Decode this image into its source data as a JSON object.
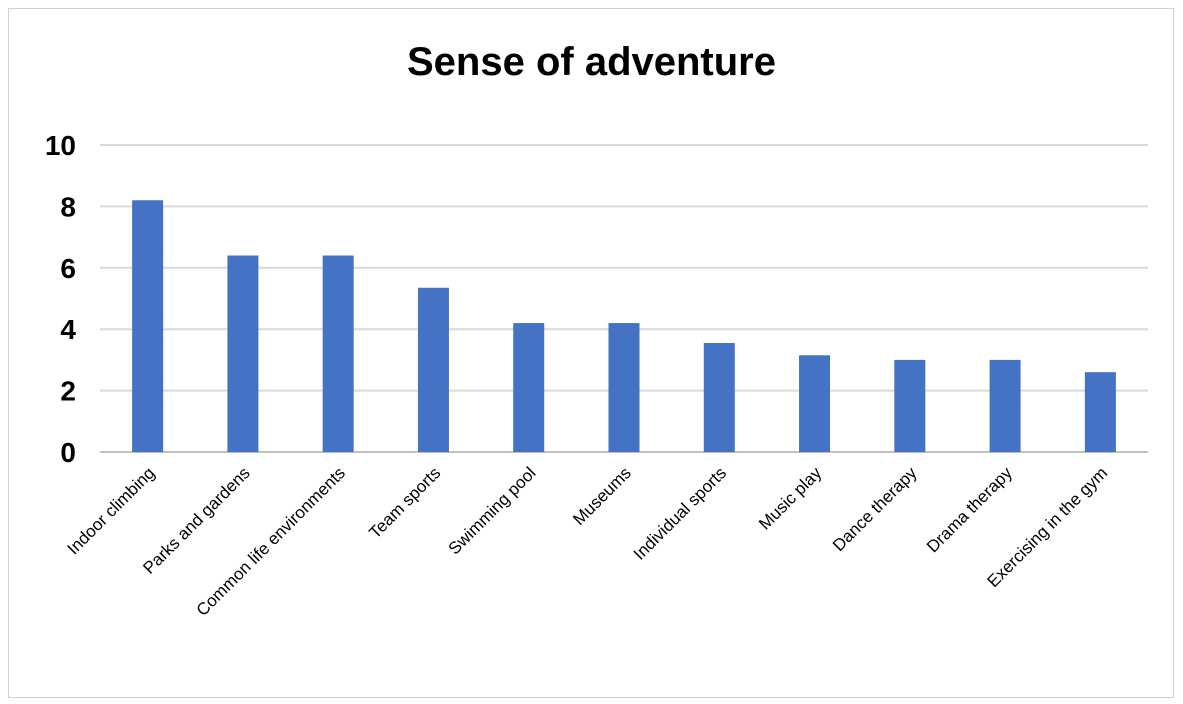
{
  "chart_data": {
    "type": "bar",
    "title": "Sense of adventure",
    "xlabel": "",
    "ylabel": "",
    "categories": [
      "Indoor climbing",
      "Parks and gardens",
      "Common life environments",
      "Team sports",
      "Swimming pool",
      "Museums",
      "Individual sports",
      "Music play",
      "Dance therapy",
      "Drama therapy",
      "Exercising in the gym"
    ],
    "values": [
      8.2,
      6.4,
      6.4,
      5.35,
      4.2,
      4.2,
      3.55,
      3.15,
      3.0,
      3.0,
      2.6
    ],
    "ylim": [
      0,
      10
    ],
    "yticks": [
      "0",
      "2",
      "4",
      "6",
      "8",
      "10"
    ],
    "grid": true,
    "legend": "none",
    "colors": {
      "bar": "#4472C4",
      "grid": "#d9d9d9",
      "axis": "#bfbfbf"
    }
  }
}
